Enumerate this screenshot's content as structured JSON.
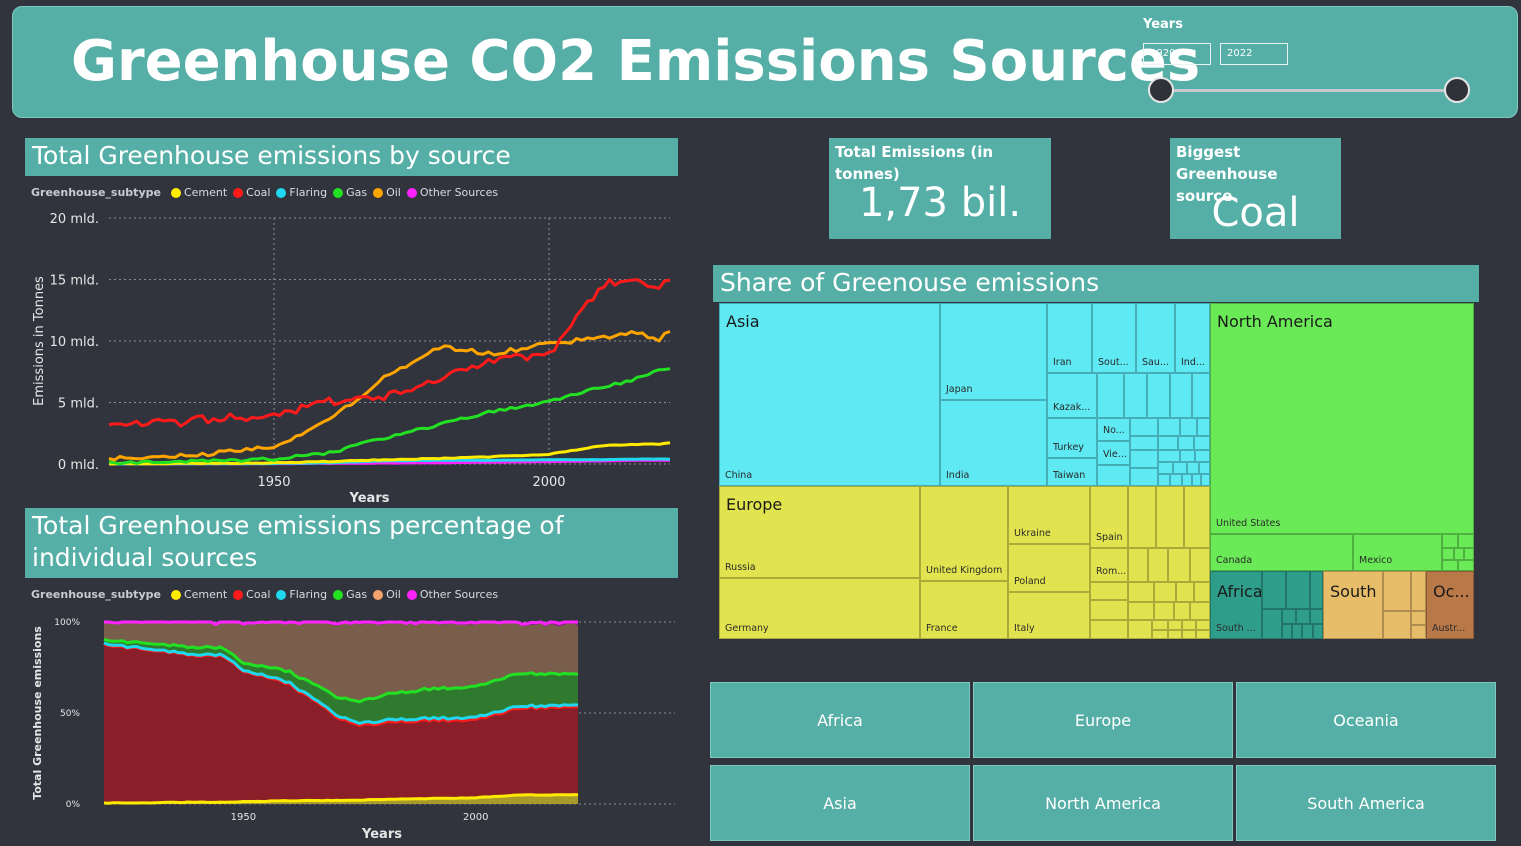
{
  "header": {
    "title": "Greenhouse CO2 Emissions Sources",
    "years_label": "Years",
    "year_start": "1920",
    "year_end": "2022"
  },
  "chart1": {
    "title": "Total Greenhouse emissions by source",
    "legend_title": "Greenhouse_subtype",
    "legend": [
      {
        "label": "Cement",
        "color": "#ffeb00"
      },
      {
        "label": "Coal",
        "color": "#ff1a1a"
      },
      {
        "label": "Flaring",
        "color": "#1fd8f0"
      },
      {
        "label": "Gas",
        "color": "#22e022"
      },
      {
        "label": "Oil",
        "color": "#ffa500"
      },
      {
        "label": "Other Sources",
        "color": "#ff22ff"
      }
    ],
    "y_ticks": [
      "20 mld.",
      "15 mld.",
      "10 mld.",
      "5 mld.",
      "0 mld."
    ],
    "x_ticks": [
      "1950",
      "2000"
    ],
    "xlabel": "Years",
    "ylabel": "Emissions in Tonnes"
  },
  "chart2": {
    "title_line1": "Total Greenhouse emissions percentage of",
    "title_line2": "individual sources",
    "legend_title": "Greenhouse_subtype",
    "legend": [
      {
        "label": "Cement",
        "color": "#ffeb00"
      },
      {
        "label": "Coal",
        "color": "#ff1a1a"
      },
      {
        "label": "Flaring",
        "color": "#1fd8f0"
      },
      {
        "label": "Gas",
        "color": "#22e022"
      },
      {
        "label": "Oil",
        "color": "#f3a36b"
      },
      {
        "label": "Other Sources",
        "color": "#ff22ff"
      }
    ],
    "y_ticks": [
      "100%",
      "50%",
      "0%"
    ],
    "x_ticks": [
      "1950",
      "2000"
    ],
    "xlabel": "Years",
    "ylabel": "Total Greenhouse emissions"
  },
  "chart_data": [
    {
      "type": "line",
      "title": "Total Greenhouse emissions by source",
      "xlabel": "Years",
      "ylabel": "Emissions in Tonnes",
      "xlim": [
        1920,
        2022
      ],
      "ylim": [
        0,
        20000000000
      ],
      "x": [
        1920,
        1930,
        1940,
        1950,
        1960,
        1970,
        1980,
        1990,
        2000,
        2010,
        2015,
        2020,
        2022
      ],
      "series": [
        {
          "name": "Coal",
          "values": [
            3100000000,
            3300000000,
            3700000000,
            4000000000,
            5100000000,
            5500000000,
            7000000000,
            8300000000,
            9000000000,
            14600000000,
            15000000000,
            14300000000,
            15300000000
          ]
        },
        {
          "name": "Oil",
          "values": [
            400000000,
            600000000,
            900000000,
            1500000000,
            3500000000,
            7000000000,
            9500000000,
            9000000000,
            9800000000,
            10300000000,
            10800000000,
            10100000000,
            10800000000
          ]
        },
        {
          "name": "Gas",
          "values": [
            100000000,
            150000000,
            250000000,
            400000000,
            900000000,
            2100000000,
            3200000000,
            4300000000,
            5100000000,
            6300000000,
            6800000000,
            7600000000,
            7700000000
          ]
        },
        {
          "name": "Cement",
          "values": [
            20000000,
            40000000,
            60000000,
            100000000,
            200000000,
            350000000,
            450000000,
            600000000,
            800000000,
            1500000000,
            1600000000,
            1600000000,
            1700000000
          ]
        },
        {
          "name": "Flaring",
          "values": [
            10000000,
            15000000,
            20000000,
            40000000,
            100000000,
            250000000,
            300000000,
            300000000,
            350000000,
            350000000,
            400000000,
            400000000,
            400000000
          ]
        },
        {
          "name": "Other Sources",
          "values": [
            10000000,
            10000000,
            20000000,
            30000000,
            50000000,
            80000000,
            100000000,
            150000000,
            200000000,
            250000000,
            300000000,
            300000000,
            300000000
          ]
        }
      ]
    },
    {
      "type": "area",
      "title": "Total Greenhouse emissions percentage of individual sources",
      "xlabel": "Years",
      "ylabel": "Total Greenhouse emissions",
      "xlim": [
        1920,
        2022
      ],
      "ylim": [
        0,
        100
      ],
      "x": [
        1920,
        1930,
        1940,
        1945,
        1950,
        1960,
        1970,
        1975,
        1980,
        1990,
        2000,
        2010,
        2022
      ],
      "series": [
        {
          "name": "Cement",
          "values": [
            0.5,
            0.7,
            1,
            1,
            1.3,
            1.8,
            2,
            2.2,
            2.5,
            3,
            3.5,
            5,
            5
          ]
        },
        {
          "name": "Coal",
          "values": [
            87,
            84,
            80,
            81,
            72,
            64,
            46,
            41,
            42,
            43,
            43,
            48,
            48
          ]
        },
        {
          "name": "Flaring",
          "values": [
            0.5,
            0.5,
            0.5,
            0.5,
            0.6,
            0.7,
            1,
            1.2,
            1.2,
            1.2,
            1.2,
            1,
            1
          ]
        },
        {
          "name": "Gas",
          "values": [
            2,
            3,
            4,
            4,
            4,
            6,
            10,
            12,
            14,
            16,
            17,
            18,
            17
          ]
        },
        {
          "name": "Oil",
          "values": [
            10,
            11.8,
            14.5,
            13.5,
            22,
            27,
            40,
            42.6,
            39.3,
            35.8,
            34.3,
            27,
            27
          ]
        },
        {
          "name": "Other Sources",
          "values": [
            0,
            0,
            0,
            0,
            0.1,
            0.5,
            1,
            1,
            1,
            1,
            1,
            1,
            2
          ]
        }
      ]
    }
  ],
  "kpi": {
    "total_title": "Total Emissions (in tonnes)",
    "total_value": "1,73 bil.",
    "biggest_title_line1": "Biggest Greenhouse",
    "biggest_title_line2": "source",
    "biggest_value": "Coal"
  },
  "treemap": {
    "title": "Share of Greenouse emissions",
    "regions": {
      "asia": "Asia",
      "europe": "Europe",
      "north_america": "North America",
      "africa": "Africa",
      "south_america": "South Am...",
      "oceania": "Oc..."
    },
    "countries": {
      "china": "China",
      "japan": "Japan",
      "india": "India",
      "iran": "Iran",
      "south_korea": "Sout...",
      "saudi": "Sau...",
      "indonesia": "Ind...",
      "kazakhstan": "Kazak...",
      "turkey": "Turkey",
      "taiwan": "Taiwan",
      "north_korea": "No...",
      "vietnam": "Vie...",
      "russia": "Russia",
      "germany": "Germany",
      "uk": "United Kingdom",
      "france": "France",
      "ukraine": "Ukraine",
      "poland": "Poland",
      "italy": "Italy",
      "spain": "Spain",
      "romania": "Rom...",
      "us": "United States",
      "canada": "Canada",
      "mexico": "Mexico",
      "south_africa": "South ...",
      "australia": "Austr..."
    },
    "colors": {
      "asia": "#5ee9f3",
      "europe": "#e2e44f",
      "north_america": "#6aea57",
      "africa": "#2e9e8a",
      "south_america": "#e8bd6a",
      "oceania": "#b97848"
    }
  },
  "buttons": [
    "Africa",
    "Europe",
    "Oceania",
    "Asia",
    "North America",
    "South America"
  ]
}
